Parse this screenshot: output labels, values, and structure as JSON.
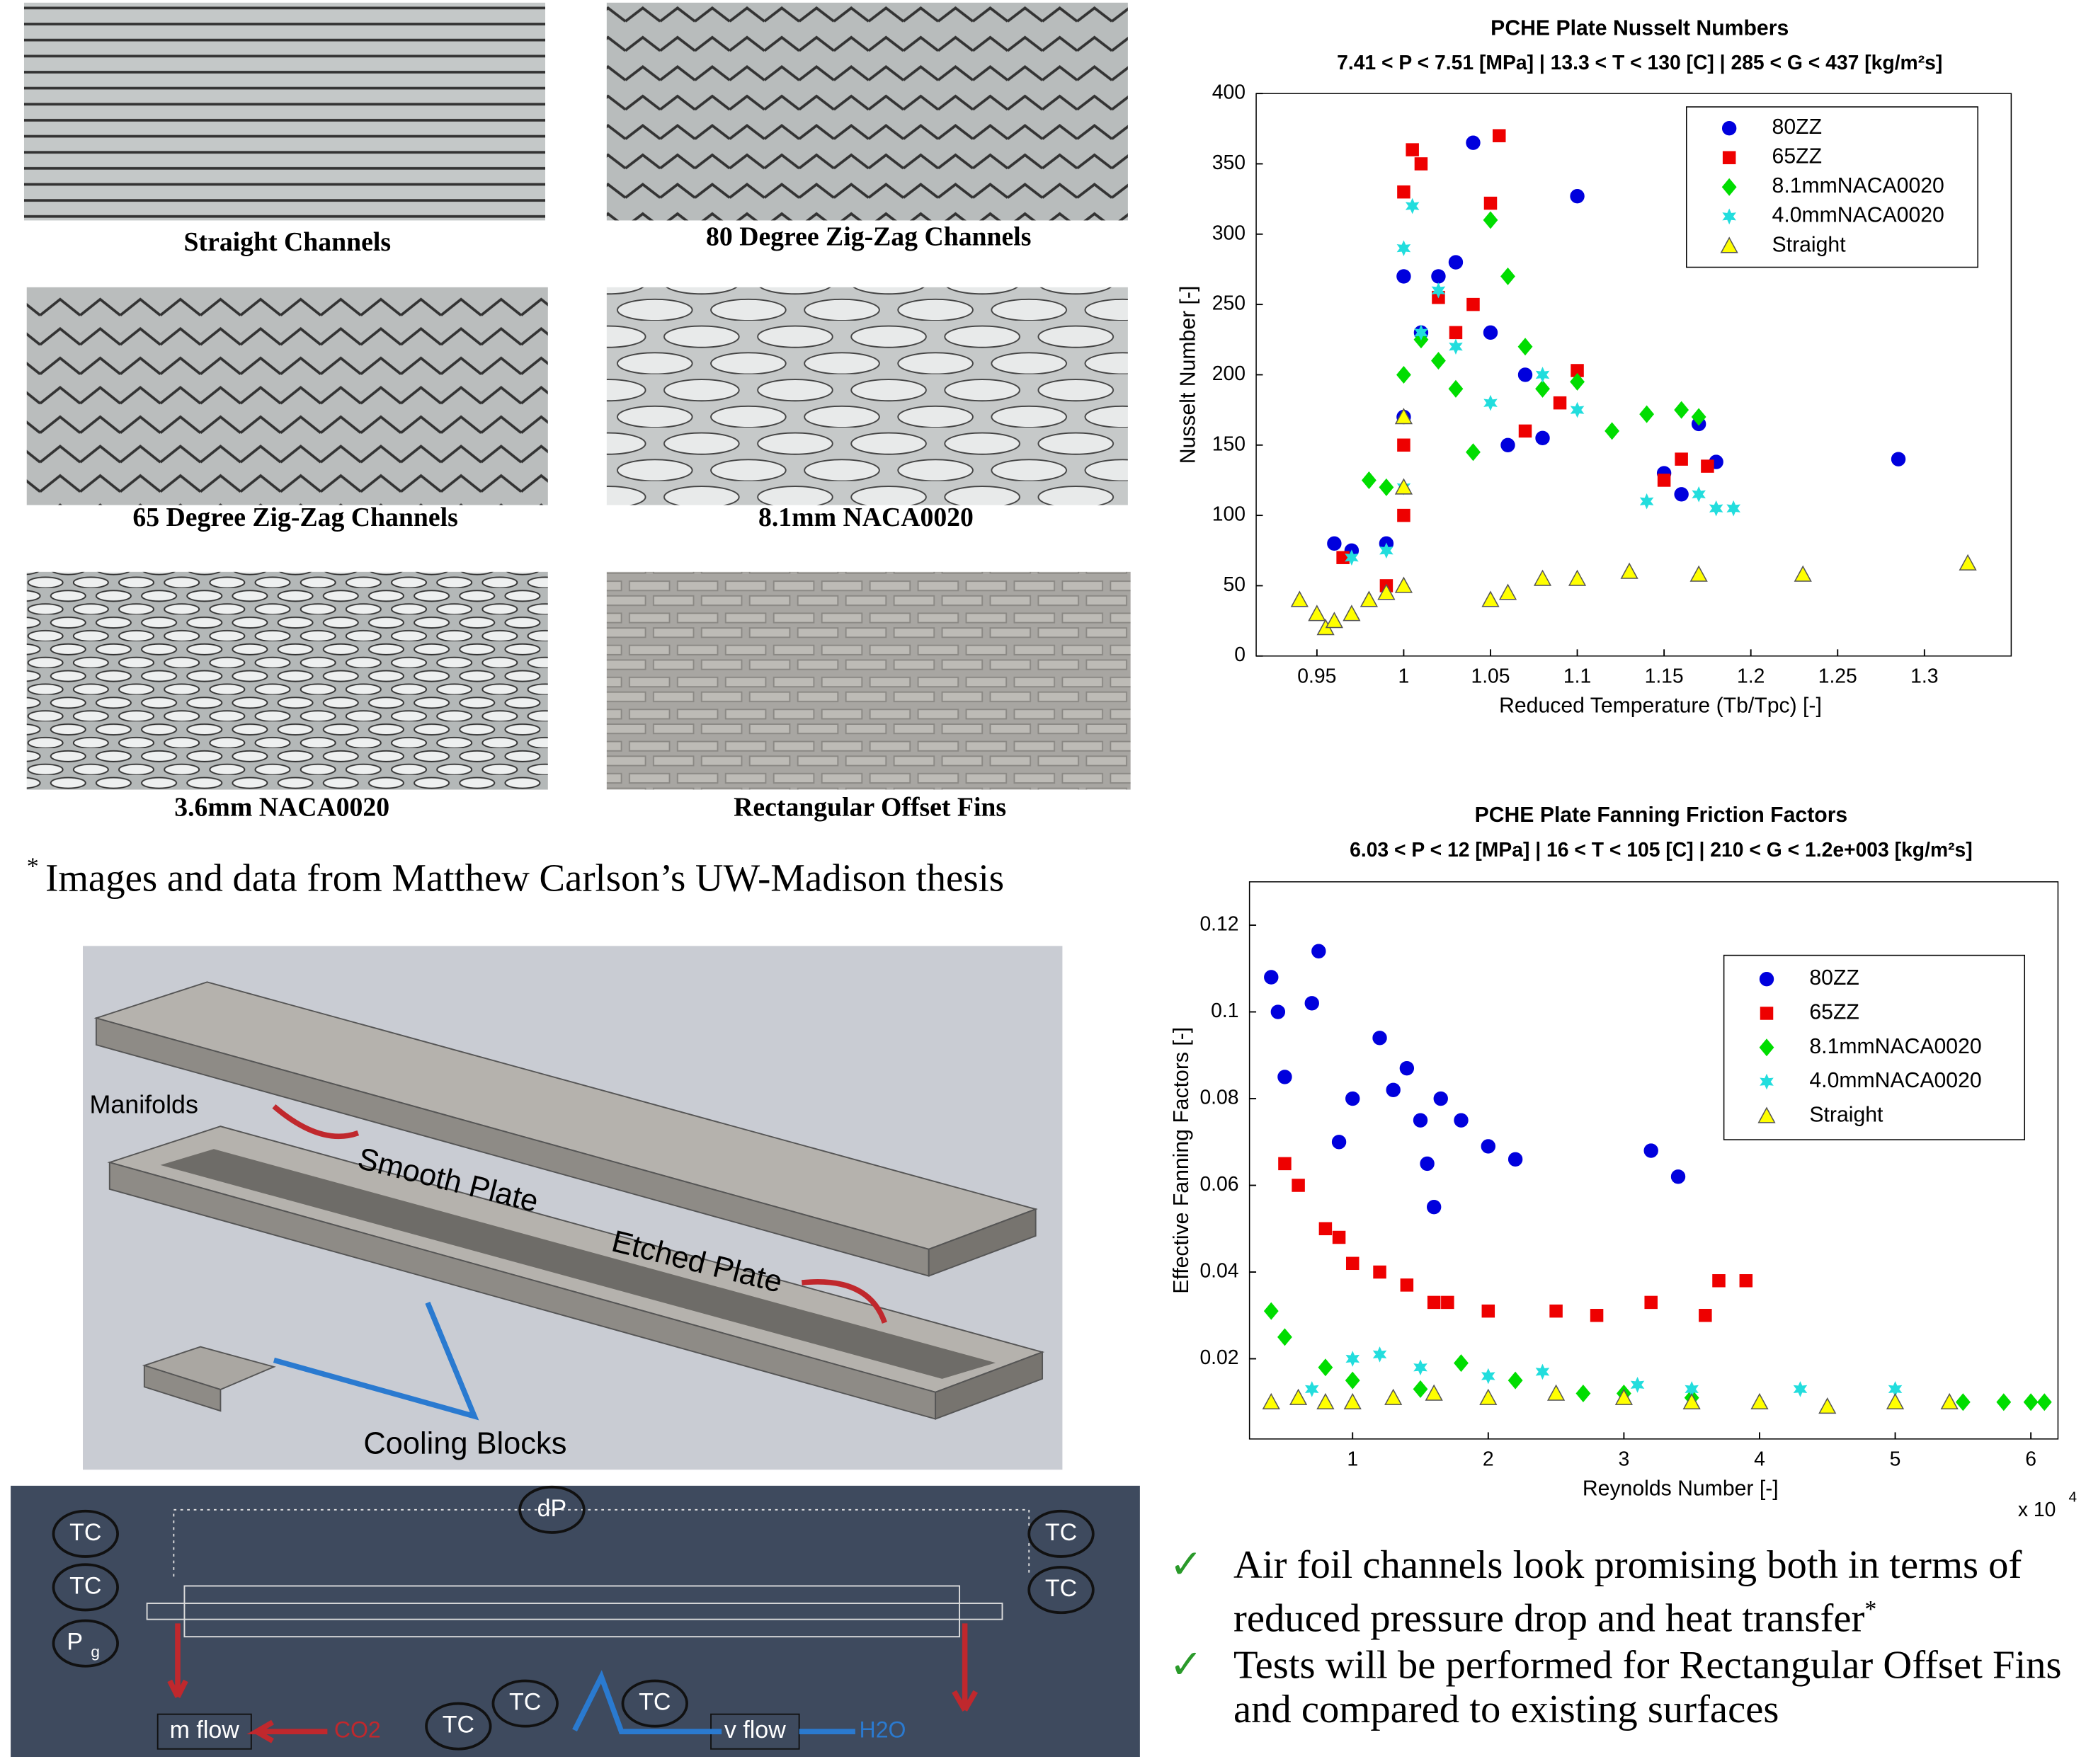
{
  "images": [
    {
      "caption": "Straight Channels"
    },
    {
      "caption": "80 Degree Zig-Zag Channels"
    },
    {
      "caption": "65 Degree Zig-Zag Channels"
    },
    {
      "caption": "8.1mm NACA0020"
    },
    {
      "caption": "3.6mm NACA0020"
    },
    {
      "caption": "Rectangular Offset Fins"
    }
  ],
  "note": {
    "marker": "*",
    "text": "Images and data from Matthew Carlson’s UW-Madison thesis"
  },
  "diagram": {
    "manifolds": "Manifolds",
    "smooth": "Smooth Plate",
    "etched": "Etched Plate",
    "cooling": "Cooling Blocks"
  },
  "schematic": {
    "dp": "dP",
    "tc": [
      "TC",
      "TC",
      "TC",
      "TC",
      "TC",
      "TC",
      "TC"
    ],
    "pg": {
      "base": "P",
      "sub": "g"
    },
    "m_flow": "m flow",
    "co2": "CO2",
    "v_flow": "v flow",
    "h2o": "H2O"
  },
  "bullets": [
    {
      "mark": "✓",
      "text": "Air foil channels look promising both in terms of reduced pressure drop and heat transfer",
      "note": "*"
    },
    {
      "mark": "✓",
      "text": "Tests will be performed for Rectangular Offset Fins and compared to existing surfaces"
    }
  ],
  "chart_data": [
    {
      "type": "scatter",
      "title": "PCHE Plate Nusselt Numbers",
      "subtitle": "7.41 < P < 7.51 [MPa]  |  13.3 < T < 130 [C]  |  285 < G < 437 [kg/m²s]",
      "x_label": "Reduced Temperature (Tb/Tpc) [-]",
      "y_label": "Nusselt Number [-]",
      "xlim": [
        0.915,
        1.35
      ],
      "ylim": [
        0,
        400
      ],
      "xticks": [
        0.95,
        1,
        1.05,
        1.1,
        1.15,
        1.2,
        1.25,
        1.3
      ],
      "yticks": [
        0,
        50,
        100,
        150,
        200,
        250,
        300,
        350,
        400
      ],
      "legend": "upper right",
      "series": [
        {
          "name": "80ZZ",
          "color": "#0000dd",
          "marker": "circle",
          "x": [
            0.96,
            0.97,
            0.99,
            1.0,
            1.0,
            1.01,
            1.02,
            1.03,
            1.04,
            1.05,
            1.06,
            1.07,
            1.08,
            1.1,
            1.15,
            1.16,
            1.17,
            1.18,
            1.285
          ],
          "values": [
            80,
            75,
            80,
            170,
            270,
            230,
            270,
            280,
            365,
            230,
            150,
            200,
            155,
            327,
            130,
            115,
            165,
            138,
            140
          ]
        },
        {
          "name": "65ZZ",
          "color": "#ee0000",
          "marker": "square",
          "x": [
            0.965,
            0.99,
            1.0,
            1.0,
            1.0,
            1.005,
            1.01,
            1.02,
            1.03,
            1.04,
            1.05,
            1.055,
            1.07,
            1.09,
            1.1,
            1.15,
            1.16,
            1.175
          ],
          "values": [
            70,
            50,
            100,
            150,
            330,
            360,
            350,
            255,
            230,
            250,
            322,
            370,
            160,
            180,
            203,
            125,
            140,
            135
          ]
        },
        {
          "name": "8.1mmNACA0020",
          "color": "#00dd00",
          "marker": "diamond",
          "x": [
            0.98,
            0.99,
            1.0,
            1.01,
            1.02,
            1.03,
            1.04,
            1.05,
            1.06,
            1.07,
            1.08,
            1.1,
            1.12,
            1.14,
            1.16,
            1.17
          ],
          "values": [
            125,
            120,
            200,
            225,
            210,
            190,
            145,
            310,
            270,
            220,
            190,
            195,
            160,
            172,
            175,
            170
          ]
        },
        {
          "name": "4.0mmNACA0020",
          "color": "#22dddd",
          "marker": "star",
          "x": [
            0.97,
            0.99,
            1.0,
            1.0,
            1.005,
            1.01,
            1.02,
            1.03,
            1.05,
            1.08,
            1.1,
            1.14,
            1.17,
            1.18,
            1.19
          ],
          "values": [
            70,
            75,
            120,
            290,
            320,
            230,
            260,
            220,
            180,
            200,
            175,
            110,
            115,
            105,
            105
          ]
        },
        {
          "name": "Straight",
          "color": "#ffff00",
          "marker": "triangle",
          "x": [
            0.94,
            0.95,
            0.955,
            0.96,
            0.97,
            0.98,
            0.99,
            1.0,
            1.0,
            1.0,
            1.05,
            1.06,
            1.08,
            1.1,
            1.13,
            1.17,
            1.23,
            1.325
          ],
          "values": [
            40,
            30,
            20,
            25,
            30,
            40,
            45,
            50,
            120,
            170,
            40,
            45,
            55,
            55,
            60,
            58,
            58,
            66
          ]
        }
      ]
    },
    {
      "type": "scatter",
      "title": "PCHE Plate Fanning Friction Factors",
      "subtitle": "6.03 < P < 12 [MPa]  |  16 < T < 105 [C]  |  210 < G < 1.2e+003 [kg/m²s]",
      "x_label": "Reynolds Number [-]",
      "y_label": "Effective Fanning Factors [-]",
      "x_multiplier": {
        "base": "x 10",
        "exp": "4"
      },
      "xlim": [
        0.24,
        6.2
      ],
      "ylim": [
        0.0015,
        0.13
      ],
      "xticks": [
        1,
        2,
        3,
        4,
        5,
        6
      ],
      "yticks": [
        0.02,
        0.04,
        0.06,
        0.08,
        0.1,
        0.12
      ],
      "legend": "upper right",
      "series": [
        {
          "name": "80ZZ",
          "color": "#0000dd",
          "marker": "circle",
          "x": [
            0.4,
            0.45,
            0.5,
            0.7,
            0.75,
            0.9,
            1.0,
            1.2,
            1.3,
            1.4,
            1.5,
            1.55,
            1.6,
            1.65,
            1.8,
            2.0,
            2.2,
            3.2,
            3.4
          ],
          "values": [
            0.108,
            0.1,
            0.085,
            0.102,
            0.114,
            0.07,
            0.08,
            0.094,
            0.082,
            0.087,
            0.075,
            0.065,
            0.055,
            0.08,
            0.075,
            0.069,
            0.066,
            0.068,
            0.062
          ]
        },
        {
          "name": "65ZZ",
          "color": "#ee0000",
          "marker": "square",
          "x": [
            0.5,
            0.6,
            0.8,
            0.9,
            1.0,
            1.2,
            1.4,
            1.6,
            1.7,
            2.0,
            2.5,
            2.8,
            3.2,
            3.6,
            3.7,
            3.9
          ],
          "values": [
            0.065,
            0.06,
            0.05,
            0.048,
            0.042,
            0.04,
            0.037,
            0.033,
            0.033,
            0.031,
            0.031,
            0.03,
            0.033,
            0.03,
            0.038,
            0.038
          ]
        },
        {
          "name": "8.1mmNACA0020",
          "color": "#00dd00",
          "marker": "diamond",
          "x": [
            0.4,
            0.5,
            0.8,
            1.0,
            1.5,
            1.8,
            2.2,
            2.7,
            3.0,
            3.5,
            5.5,
            5.8,
            6.0,
            6.1
          ],
          "values": [
            0.031,
            0.025,
            0.018,
            0.015,
            0.013,
            0.019,
            0.015,
            0.012,
            0.012,
            0.011,
            0.01,
            0.01,
            0.01,
            0.01
          ]
        },
        {
          "name": "4.0mmNACA0020",
          "color": "#22dddd",
          "marker": "star",
          "x": [
            0.7,
            1.0,
            1.2,
            1.5,
            2.0,
            2.4,
            3.1,
            3.5,
            4.3,
            5.0
          ],
          "values": [
            0.013,
            0.02,
            0.021,
            0.018,
            0.016,
            0.017,
            0.014,
            0.013,
            0.013,
            0.013
          ]
        },
        {
          "name": "Straight",
          "color": "#ffff00",
          "marker": "triangle",
          "x": [
            0.4,
            0.6,
            0.8,
            1.0,
            1.3,
            1.6,
            2.0,
            2.5,
            3.0,
            3.5,
            4.0,
            4.5,
            5.0,
            5.4
          ],
          "values": [
            0.01,
            0.011,
            0.01,
            0.01,
            0.011,
            0.012,
            0.011,
            0.012,
            0.011,
            0.01,
            0.01,
            0.009,
            0.01,
            0.01
          ]
        }
      ]
    }
  ]
}
